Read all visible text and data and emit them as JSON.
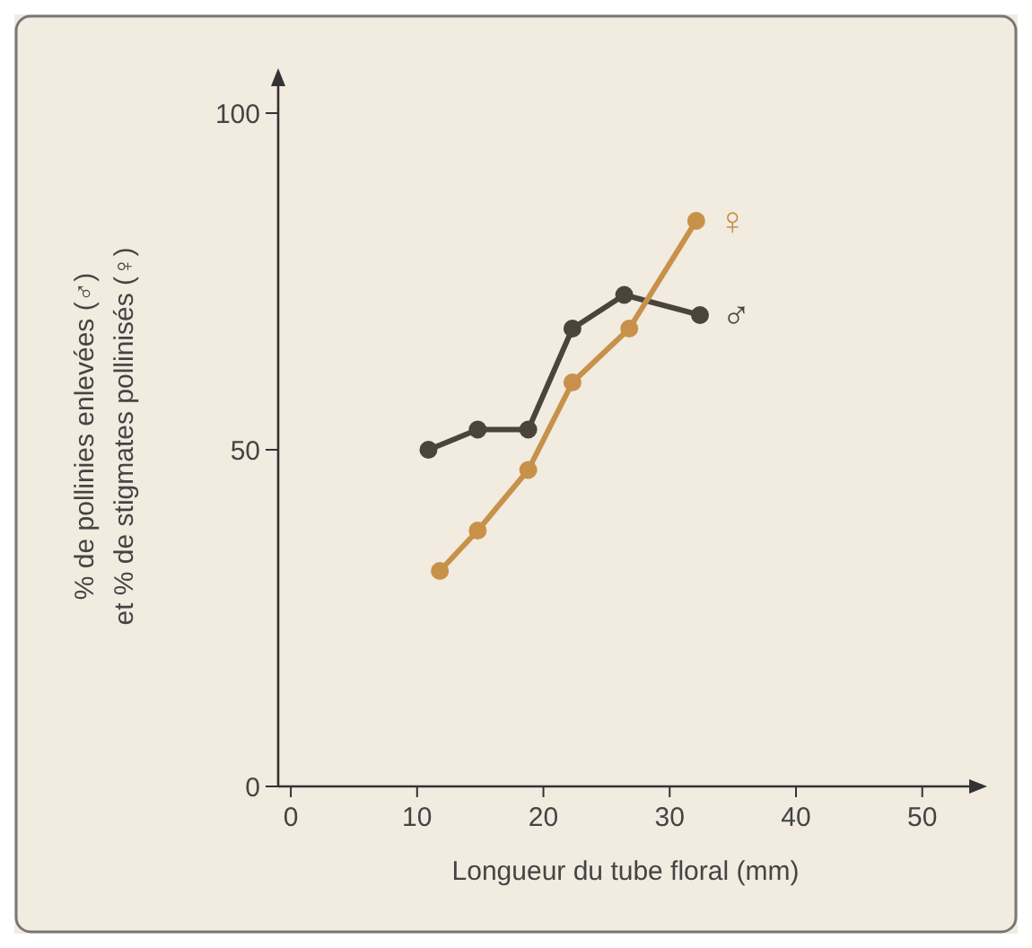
{
  "chart_data": {
    "type": "line",
    "xlabel": "Longueur du tube floral (mm)",
    "ylabel": "% de pollinies enlevées (♂)\net % de stigmates pollinisés (♀)",
    "xlim": [
      -1,
      54
    ],
    "ylim": [
      0,
      104
    ],
    "xticks": [
      0,
      10,
      20,
      30,
      40,
      50
    ],
    "yticks": [
      0,
      50,
      100
    ],
    "grid": false,
    "marker": "circle",
    "line_style": "solid",
    "series": [
      {
        "name": "♂",
        "color": "#4a4538",
        "x": [
          10.9,
          14.8,
          18.8,
          22.3,
          26.4,
          32.4
        ],
        "values": [
          50,
          53,
          53,
          68,
          73,
          70
        ]
      },
      {
        "name": "♀",
        "color": "#c8914a",
        "x": [
          11.8,
          14.8,
          18.8,
          22.3,
          26.8,
          32.1
        ],
        "values": [
          32,
          38,
          47,
          60,
          68,
          84
        ]
      }
    ]
  }
}
